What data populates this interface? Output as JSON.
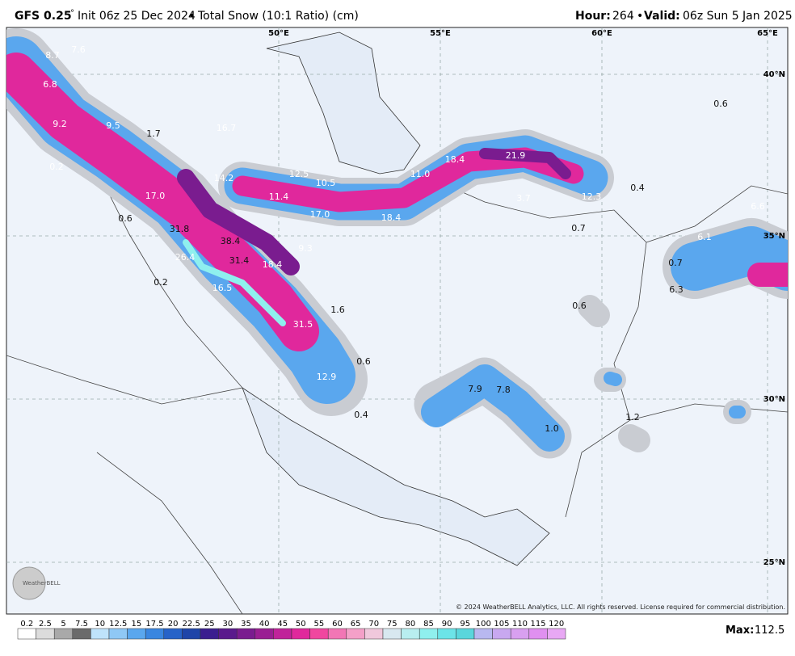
{
  "header": {
    "model": "GFS 0.25",
    "degree": "°",
    "init": "Init 06z 25 Dec 2024",
    "sep": "•",
    "product": "Total Snow (10:1 Ratio) (cm)",
    "hour_label": "Hour:",
    "hour": "264",
    "valid_label": "Valid:",
    "valid": "06z Sun 5 Jan 2025"
  },
  "map": {
    "lon_labels": [
      "50°E",
      "55°E",
      "60°E",
      "65°E"
    ],
    "lat_labels": [
      "40°N",
      "35°N",
      "30°N",
      "25°N"
    ],
    "values": [
      "8.7",
      "7.6",
      "6.8",
      "9.2",
      "9.5",
      "1.7",
      "16.7",
      "0.2",
      "17.0",
      "14.2",
      "12.5",
      "10.5",
      "11.4",
      "11.0",
      "18.4",
      "21.9",
      "3.7",
      "12.3",
      "0.4",
      "0.6",
      "17.0",
      "18.4",
      "0.7",
      "6.6",
      "6.1",
      "31.8",
      "38.4",
      "9.3",
      "26.4",
      "31.4",
      "18.4",
      "0.7",
      "0.2",
      "16.5",
      "6.3",
      "1.6",
      "0.6",
      "31.5",
      "0.6",
      "12.9",
      "7.9",
      "7.8",
      "0.4",
      "1.2",
      "1.0",
      "0.6"
    ],
    "copyright": "© 2024 WeatherBELL Analytics, LLC. All rights reserved. License required for commercial distribution.",
    "logo": "WeatherBELL"
  },
  "legend": {
    "ticks": [
      0.2,
      2.5,
      5,
      7.5,
      10,
      12.5,
      15,
      17.5,
      20,
      22.5,
      25,
      30,
      35,
      40,
      45,
      50,
      55,
      60,
      65,
      70,
      75,
      80,
      85,
      90,
      95,
      100,
      105,
      110,
      115,
      120
    ],
    "colors": [
      "#ffffff",
      "#dcdcdc",
      "#a9a9a9",
      "#6b6b6b",
      "#bfe3fb",
      "#8fc8f5",
      "#5aa7ee",
      "#3a86e0",
      "#2763c8",
      "#1f45a8",
      "#3a1e8f",
      "#5a1a8c",
      "#7a1c8f",
      "#9a1f93",
      "#c0239a",
      "#e0289c",
      "#f0479f",
      "#f276b5",
      "#f4a0c8",
      "#f0c8dc",
      "#d8e8f0",
      "#b8eef0",
      "#8ff0ee",
      "#6ce4e8",
      "#5ad6dc",
      "#b8b8f0",
      "#c8a8f0",
      "#d8a0f0",
      "#e090f0",
      "#e8a8f4"
    ],
    "max_label": "Max:",
    "max": 112.5
  }
}
